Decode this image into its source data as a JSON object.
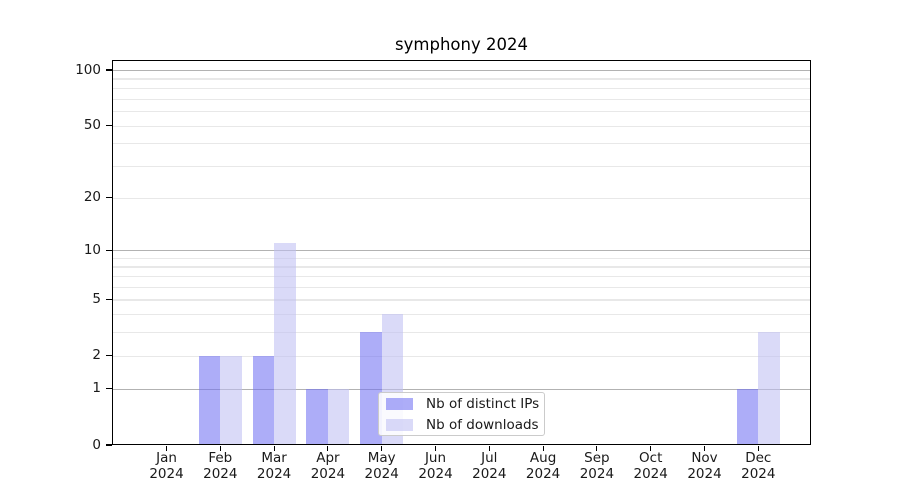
{
  "figure": {
    "title": "symphony 2024"
  },
  "chart_data": {
    "type": "bar",
    "title": "symphony 2024",
    "categories": [
      "Jan",
      "Feb",
      "Mar",
      "Apr",
      "May",
      "Jun",
      "Jul",
      "Aug",
      "Sep",
      "Oct",
      "Nov",
      "Dec"
    ],
    "x_year": "2024",
    "series": [
      {
        "name": "Nb of distinct IPs",
        "color": "#acacf8",
        "fill": "rgba(110,110,242,0.57)",
        "values": [
          0,
          2,
          2,
          1,
          3,
          0,
          0,
          0,
          0,
          0,
          0,
          1
        ]
      },
      {
        "name": "Nb of downloads",
        "color": "#dbdbf8",
        "fill": "rgba(190,190,243,0.57)",
        "values": [
          0,
          2,
          11,
          1,
          4,
          0,
          0,
          0,
          0,
          0,
          0,
          3
        ]
      }
    ],
    "y_axis": {
      "scale": "log10(1+value)",
      "tick_labels": [
        "0",
        "1",
        "2",
        "5",
        "10",
        "20",
        "50",
        "100"
      ],
      "tick_values": [
        0,
        1,
        2,
        5,
        10,
        20,
        50,
        100
      ],
      "decade_gridline_values": [
        1,
        10,
        100
      ],
      "minor_gridline_values": [
        2,
        3,
        4,
        5,
        6,
        7,
        8,
        9,
        20,
        30,
        40,
        50,
        60,
        70,
        80,
        90
      ],
      "max_value": 113
    },
    "legend": {
      "entries": [
        "Nb of distinct IPs",
        "Nb of downloads"
      ],
      "position": "lower-center-inside"
    },
    "grid": true,
    "colors": {
      "decade_grid": "#b2b2b2",
      "minor_grid": "#e8e8e8",
      "axis": "#000000",
      "text": "#1a1a1a",
      "background": "#ffffff"
    }
  }
}
